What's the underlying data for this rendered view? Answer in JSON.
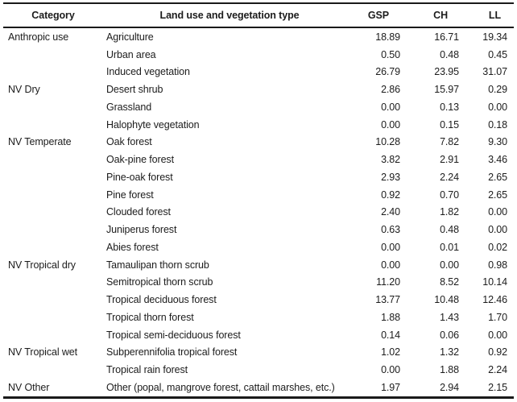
{
  "table": {
    "columns": [
      "Category",
      "Land use and vegetation type",
      "GSP",
      "CH",
      "LL"
    ],
    "rows": [
      [
        "Anthropic use",
        "Agriculture",
        "18.89",
        "16.71",
        "19.34"
      ],
      [
        "",
        "Urban area",
        "0.50",
        "0.48",
        "0.45"
      ],
      [
        "",
        "Induced vegetation",
        "26.79",
        "23.95",
        "31.07"
      ],
      [
        "NV Dry",
        "Desert shrub",
        "2.86",
        "15.97",
        "0.29"
      ],
      [
        "",
        "Grassland",
        "0.00",
        "0.13",
        "0.00"
      ],
      [
        "",
        "Halophyte vegetation",
        "0.00",
        "0.15",
        "0.18"
      ],
      [
        "NV Temperate",
        "Oak forest",
        "10.28",
        "7.82",
        "9.30"
      ],
      [
        "",
        "Oak-pine forest",
        "3.82",
        "2.91",
        "3.46"
      ],
      [
        "",
        "Pine-oak forest",
        "2.93",
        "2.24",
        "2.65"
      ],
      [
        "",
        "Pine forest",
        "0.92",
        "0.70",
        "2.65"
      ],
      [
        "",
        "Clouded forest",
        "2.40",
        "1.82",
        "0.00"
      ],
      [
        "",
        "Juniperus forest",
        "0.63",
        "0.48",
        "0.00"
      ],
      [
        "",
        "Abies forest",
        "0.00",
        "0.01",
        "0.02"
      ],
      [
        "NV Tropical dry",
        "Tamaulipan thorn scrub",
        "0.00",
        "0.00",
        "0.98"
      ],
      [
        "",
        "Semitropical thorn scrub",
        "11.20",
        "8.52",
        "10.14"
      ],
      [
        "",
        "Tropical deciduous forest",
        "13.77",
        "10.48",
        "12.46"
      ],
      [
        "",
        "Tropical thorn forest",
        "1.88",
        "1.43",
        "1.70"
      ],
      [
        "",
        "Tropical semi-deciduous forest",
        "0.14",
        "0.06",
        "0.00"
      ],
      [
        "NV Tropical wet",
        "Subperennifolia tropical forest",
        "1.02",
        "1.32",
        "0.92"
      ],
      [
        "",
        "Tropical rain forest",
        "0.00",
        "1.88",
        "2.24"
      ],
      [
        "NV Other",
        "Other (popal, mangrove forest, cattail marshes, etc.)",
        "1.97",
        "2.94",
        "2.15"
      ]
    ],
    "colors": {
      "text": "#1c1c1c",
      "rule": "#1a1a1a",
      "background": "#ffffff"
    }
  }
}
